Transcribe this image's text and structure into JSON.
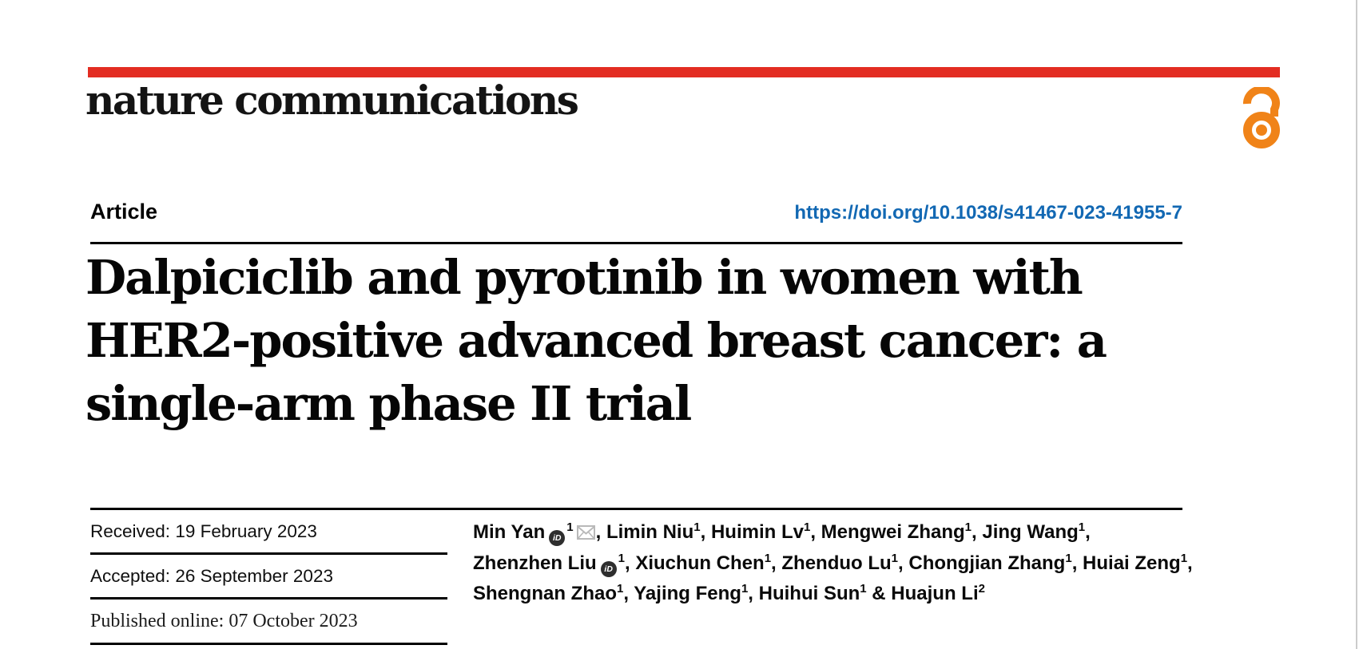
{
  "theme": {
    "accent_red": "#e32d22",
    "link_blue": "#1268b3",
    "open_access_orange": "#f08318",
    "rule_color": "#000000"
  },
  "masthead": {
    "journal_name": "nature communications",
    "open_access_icon": "open-access-lock-icon"
  },
  "article": {
    "type_label": "Article",
    "doi": "https://doi.org/10.1038/s41467-023-41955-7",
    "title_lines": [
      "Dalpiciclib and pyrotinib in women with",
      "HER2-positive advanced breast cancer: a",
      "single-arm phase II trial"
    ]
  },
  "history": [
    {
      "label": "Received:",
      "value": "19 February 2023"
    },
    {
      "label": "Accepted:",
      "value": "26 September 2023"
    },
    {
      "label": "Published online:",
      "value": "07 October 2023"
    }
  ],
  "authors": {
    "orcid_icon": "orcid-id-icon",
    "email_icon": "envelope-icon",
    "lines": [
      [
        {
          "name": "Min Yan",
          "orcid": true,
          "sup": "1",
          "email": true,
          "trail": ", "
        },
        {
          "name": "Limin Niu",
          "sup": "1",
          "trail": ", "
        },
        {
          "name": "Huimin Lv",
          "sup": "1",
          "trail": ", "
        },
        {
          "name": "Mengwei Zhang",
          "sup": "1",
          "trail": ", "
        },
        {
          "name": "Jing Wang",
          "sup": "1",
          "trail": ","
        }
      ],
      [
        {
          "name": "Zhenzhen Liu",
          "orcid": true,
          "sup": "1",
          "trail": ", "
        },
        {
          "name": "Xiuchun Chen",
          "sup": "1",
          "trail": ", "
        },
        {
          "name": "Zhenduo Lu",
          "sup": "1",
          "trail": ", "
        },
        {
          "name": "Chongjian Zhang",
          "sup": "1",
          "trail": ", "
        },
        {
          "name": "Huiai Zeng",
          "sup": "1",
          "trail": ","
        }
      ],
      [
        {
          "name": "Shengnan Zhao",
          "sup": "1",
          "trail": ", "
        },
        {
          "name": "Yajing Feng",
          "sup": "1",
          "trail": ", "
        },
        {
          "name": "Huihui Sun",
          "sup": "1",
          "trail": " & "
        },
        {
          "name": "Huajun Li",
          "sup": "2",
          "trail": ""
        }
      ]
    ]
  }
}
